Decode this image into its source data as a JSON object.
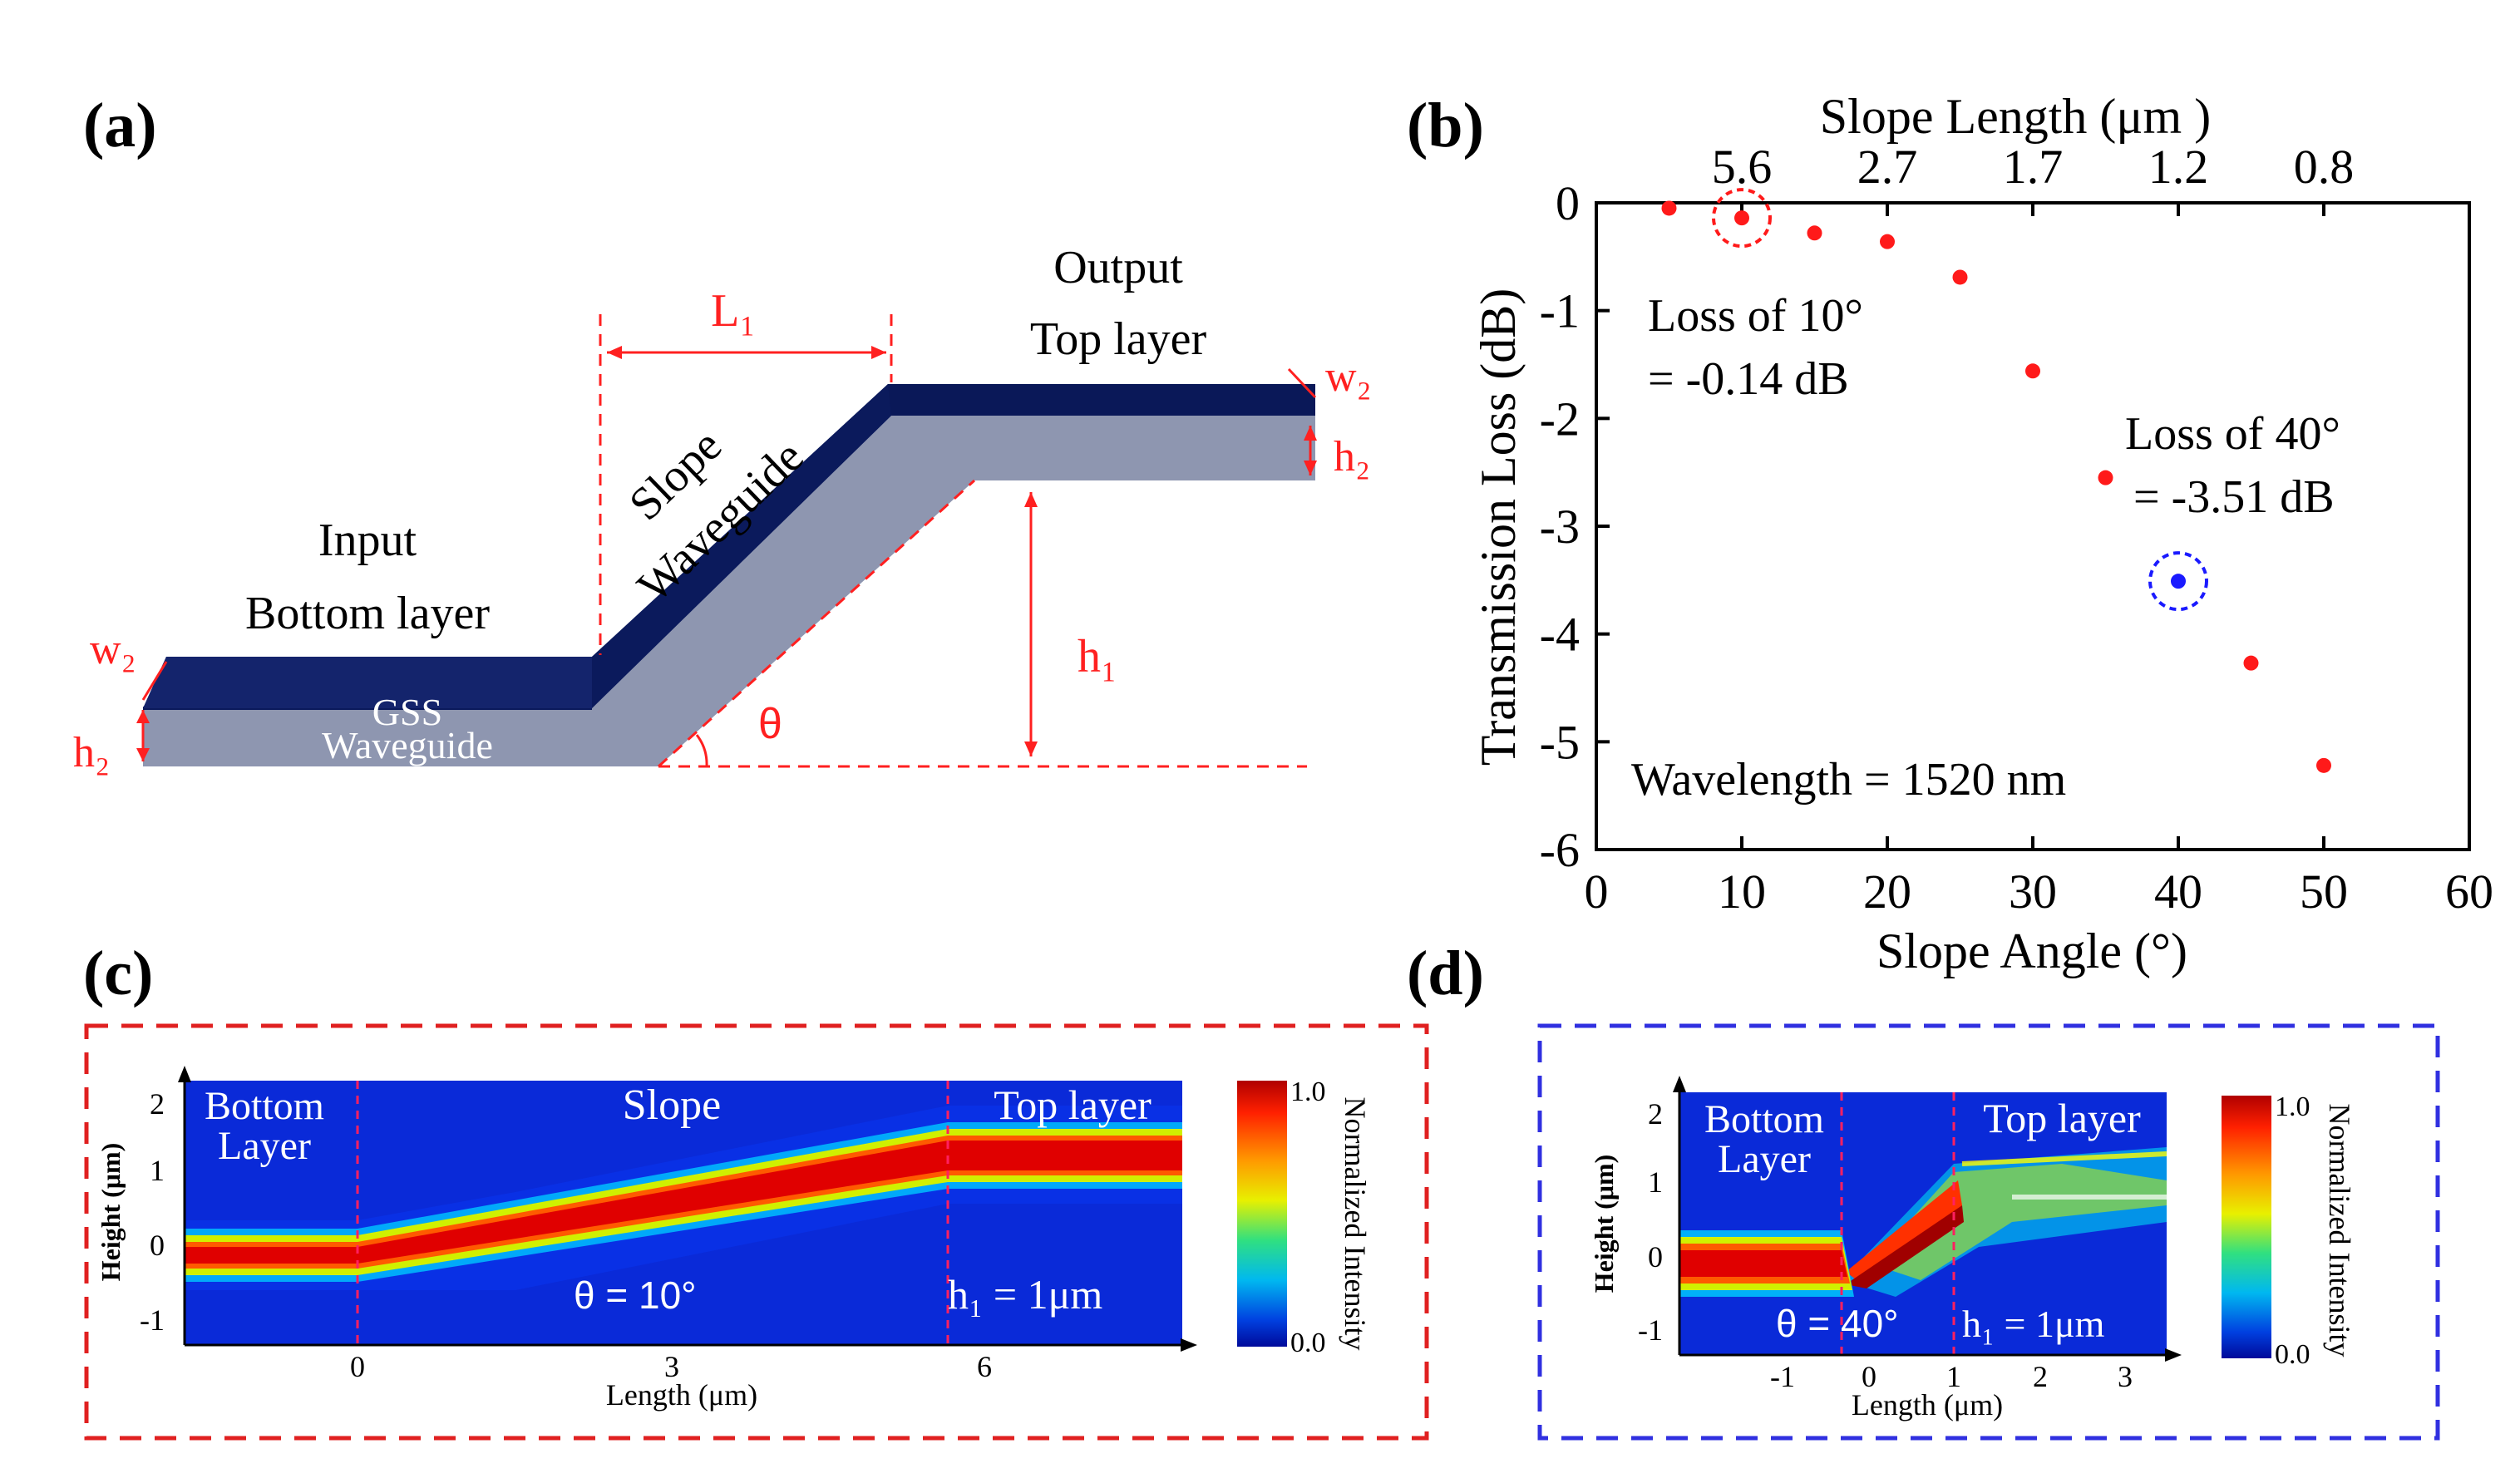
{
  "panel_labels": {
    "a": "(a)",
    "b": "(b)",
    "c": "(c)",
    "d": "(d)"
  },
  "schematic": {
    "output_line1": "Output",
    "output_line2": "Top layer",
    "input_line1": "Input",
    "input_line2": "Bottom layer",
    "slope_line1": "Slope",
    "slope_line2": "Waveguide",
    "gss_line1": "GSS",
    "gss_line2": "Waveguide",
    "l1_label": "L₁",
    "w2_left": "w₂",
    "h2_left": "h₂",
    "w2_right": "w₂",
    "h2_right": "h₂",
    "h1_label": "h₁",
    "theta_label": "θ",
    "colors": {
      "core_top": "#0b1a5c",
      "core_side": "#8e96b0",
      "guide": "#ff2020"
    }
  },
  "chart_data": {
    "type": "scatter",
    "title": "",
    "xlabel": "Slope Angle (°)",
    "ylabel": "Transmission Loss (dB)",
    "top_axis_label": "Slope Length (μm )",
    "xlim": [
      0,
      60
    ],
    "ylim": [
      -6,
      0
    ],
    "xticks": [
      "0",
      "10",
      "20",
      "30",
      "40",
      "50",
      "60"
    ],
    "yticks": [
      "0",
      "-1",
      "-2",
      "-3",
      "-4",
      "-5",
      "-6"
    ],
    "xtick_values": [
      0,
      10,
      20,
      30,
      40,
      50,
      60
    ],
    "ytick_values": [
      0,
      -1,
      -2,
      -3,
      -4,
      -5,
      -6
    ],
    "top_ticks": [
      {
        "label": "5.6",
        "at_angle": 10
      },
      {
        "label": "2.7",
        "at_angle": 20
      },
      {
        "label": "1.7",
        "at_angle": 30
      },
      {
        "label": "1.2",
        "at_angle": 40
      },
      {
        "label": "0.8",
        "at_angle": 50
      }
    ],
    "x": [
      5,
      10,
      15,
      20,
      25,
      30,
      35,
      40,
      45,
      50
    ],
    "y": [
      -0.05,
      -0.14,
      -0.28,
      -0.36,
      -0.69,
      -1.56,
      -2.55,
      -3.51,
      -4.27,
      -5.22
    ],
    "marker_color": "#ff1a1a",
    "highlight_color": "#1a1aff",
    "highlights": [
      {
        "x": 10,
        "y": -0.14,
        "color": "#ff1a1a"
      },
      {
        "x": 40,
        "y": -3.51,
        "color": "#1a1aff"
      }
    ],
    "annotations": {
      "loss10_line1": "Loss of 10°",
      "loss10_line2": "=  -0.14 dB",
      "loss40_line1": "Loss of 40°",
      "loss40_line2": "=  -3.51 dB",
      "wavelength": "Wavelength = 1520 nm"
    }
  },
  "panel_c": {
    "box_color": "#e02020",
    "bottom_label_1": "Bottom",
    "bottom_label_2": "Layer",
    "slope_label": "Slope",
    "top_label": "Top layer",
    "theta_text": "θ  = 10°",
    "h1_text": "h₁ = 1μm",
    "ylabel": "Height (μm)",
    "xlabel": "Length (μm)",
    "yticks": [
      "2",
      "1",
      "0",
      "-1"
    ],
    "xticks": [
      "0",
      "3",
      "6"
    ],
    "colorbar_max": "1.0",
    "colorbar_min": "0.0",
    "colorbar_label": "Normalized Intensity"
  },
  "panel_d": {
    "box_color": "#3030e0",
    "bottom_label_1": "Bottom",
    "bottom_label_2": "Layer",
    "top_label": "Top layer",
    "theta_text": "θ  = 40°",
    "h1_text": "h₁ = 1μm",
    "ylabel": "Height (μm)",
    "xlabel": "Length (μm)",
    "yticks": [
      "2",
      "1",
      "0",
      "-1"
    ],
    "xticks": [
      "-1",
      "0",
      "1",
      "2",
      "3"
    ],
    "colorbar_max": "1.0",
    "colorbar_min": "0.0",
    "colorbar_label": "Normalized Intensity"
  }
}
